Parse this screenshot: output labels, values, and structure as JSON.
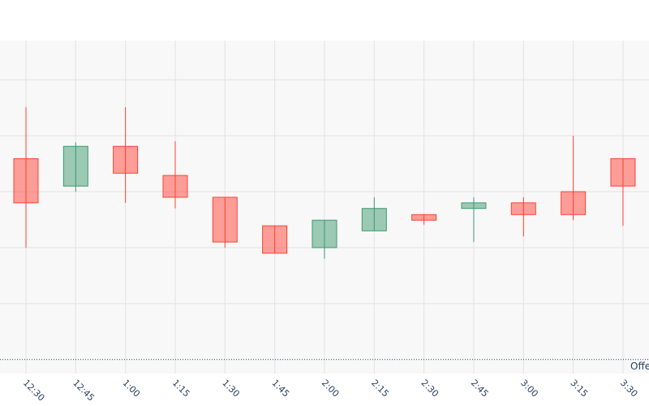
{
  "chart_data": {
    "type": "candlestick",
    "categories": [
      "12:30",
      "12:45",
      "1:00",
      "1:15",
      "1:30",
      "1:45",
      "2:00",
      "2:15",
      "2:30",
      "2:45",
      "3:00",
      "3:15",
      "3:30"
    ],
    "open": [
      3.59,
      3.1,
      3.81,
      3.29,
      2.9,
      2.39,
      2.0,
      2.3,
      2.59,
      2.7,
      2.8,
      3.0,
      3.59
    ],
    "high": [
      4.51,
      3.88,
      4.51,
      3.9,
      2.9,
      2.39,
      2.49,
      2.9,
      2.59,
      2.9,
      2.9,
      4.0,
      3.59
    ],
    "low": [
      2.0,
      3.0,
      2.8,
      2.7,
      2.0,
      1.9,
      1.8,
      2.3,
      2.41,
      2.1,
      2.2,
      2.49,
      2.39
    ],
    "close": [
      2.8,
      3.81,
      3.33,
      2.9,
      2.1,
      1.9,
      2.49,
      2.7,
      2.49,
      2.8,
      2.59,
      2.59,
      3.1
    ],
    "increasing_color": "#3d9970",
    "decreasing_color": "#ff4136",
    "ylim": [
      -0.25,
      5.7
    ],
    "ygrid": [
      1,
      2,
      3,
      4,
      5
    ],
    "hline": {
      "value": 0,
      "label": "Offe",
      "color": "#2a3f5f"
    },
    "grid": true
  }
}
